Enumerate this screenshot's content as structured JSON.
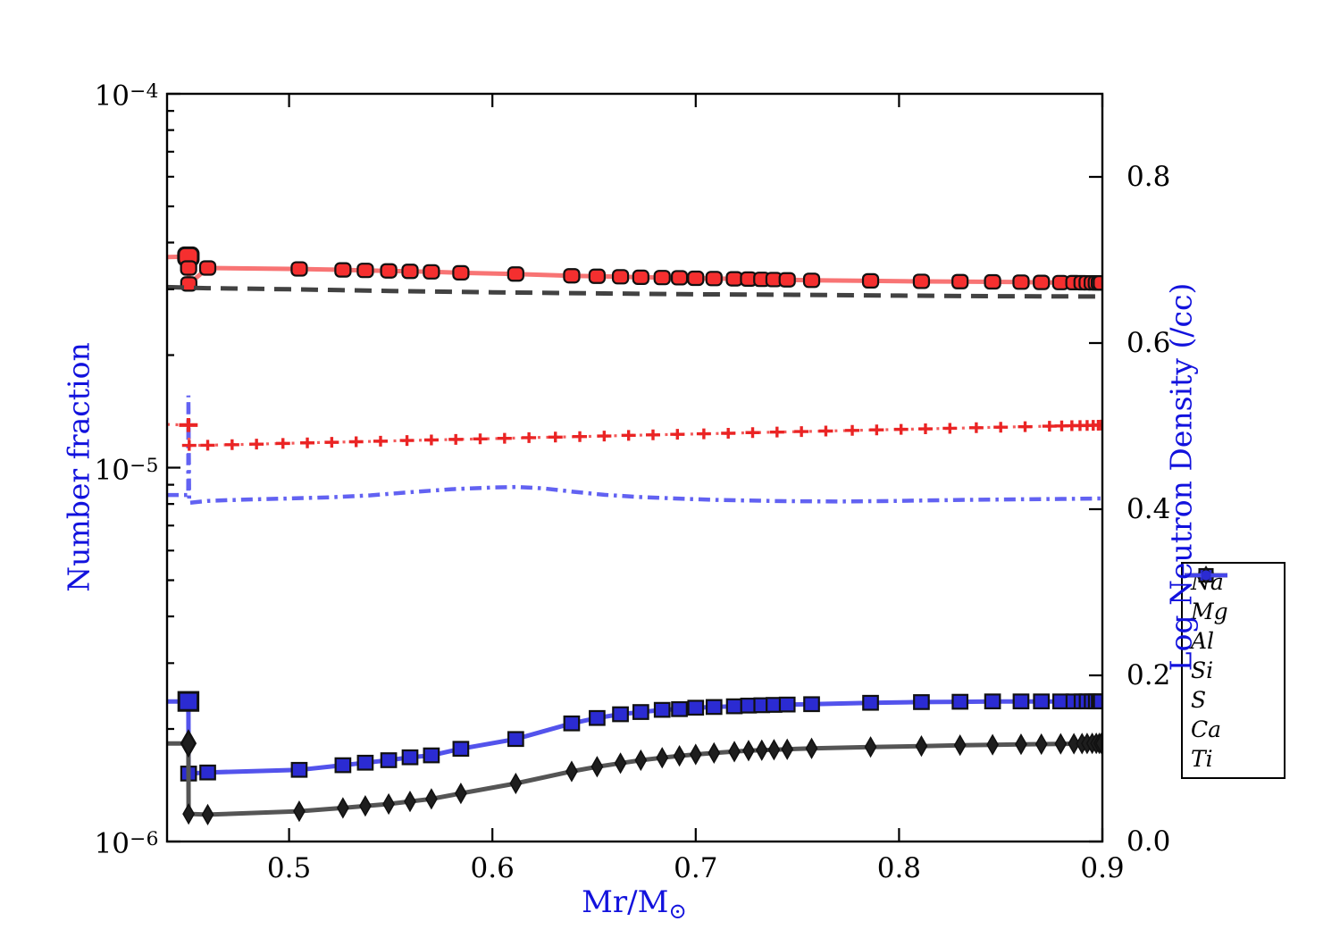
{
  "figure": {
    "background": "#ffffff",
    "label_color": "#1212dd",
    "x_axis": {
      "label_prefix": "Mr/M",
      "label_subscript": "⊙",
      "range": [
        0.44,
        0.9
      ],
      "ticks": [
        {
          "v": 0.5,
          "text": "0.5"
        },
        {
          "v": 0.6,
          "text": "0.6"
        },
        {
          "v": 0.7,
          "text": "0.7"
        },
        {
          "v": 0.8,
          "text": "0.8"
        },
        {
          "v": 0.9,
          "text": "0.9"
        }
      ]
    },
    "y_left": {
      "label": "Number fraction",
      "scale": "log",
      "range": [
        1e-06,
        0.0001
      ],
      "ticks": [
        {
          "v": 0.0001,
          "base": "10",
          "exp": "−4"
        },
        {
          "v": 1e-05,
          "base": "10",
          "exp": "−5"
        },
        {
          "v": 1e-06,
          "base": "10",
          "exp": "−6"
        }
      ]
    },
    "y_right": {
      "label": "Log Neutron Density (/cc)",
      "scale": "linear",
      "range": [
        0.0,
        0.9
      ],
      "ticks": [
        {
          "v": 0.8,
          "text": "0.8"
        },
        {
          "v": 0.6,
          "text": "0.6"
        },
        {
          "v": 0.4,
          "text": "0.4"
        },
        {
          "v": 0.2,
          "text": "0.2"
        },
        {
          "v": 0.0,
          "text": "0.0"
        }
      ]
    }
  },
  "legend": {
    "border_color": "#000000",
    "background": "#ffffff"
  },
  "chart_data": {
    "type": "line",
    "title": "",
    "xlabel": "Mr/M⊙",
    "ylabel_left": "Number fraction",
    "ylabel_right": "Log Neutron Density (/cc)",
    "x_range": [
      0.44,
      0.9
    ],
    "y_left_range": [
      1e-06,
      0.0001
    ],
    "y_right_range": [
      0.0,
      0.9
    ],
    "grid": false,
    "legend_position": "right-outside",
    "series": [
      {
        "label": "Na",
        "axis": "left",
        "line_color": "#6262f2",
        "line_width": 4.5,
        "dash": [
          13,
          6,
          3.5,
          6
        ],
        "marker": null,
        "points": [
          [
            0.44,
            8.45e-06
          ],
          [
            0.4504,
            8.45e-06
          ],
          [
            0.4505,
            1.56e-05
          ],
          [
            0.4509,
            8.05e-06
          ],
          [
            0.46,
            8.15e-06
          ],
          [
            0.48,
            8.22e-06
          ],
          [
            0.5,
            8.27e-06
          ],
          [
            0.52,
            8.33e-06
          ],
          [
            0.54,
            8.43e-06
          ],
          [
            0.56,
            8.6e-06
          ],
          [
            0.58,
            8.76e-06
          ],
          [
            0.6,
            8.85e-06
          ],
          [
            0.612,
            8.88e-06
          ],
          [
            0.625,
            8.8e-06
          ],
          [
            0.64,
            8.62e-06
          ],
          [
            0.655,
            8.46e-06
          ],
          [
            0.672,
            8.35e-06
          ],
          [
            0.69,
            8.27e-06
          ],
          [
            0.71,
            8.2e-06
          ],
          [
            0.74,
            8.14e-06
          ],
          [
            0.77,
            8.12e-06
          ],
          [
            0.8,
            8.15e-06
          ],
          [
            0.83,
            8.2e-06
          ],
          [
            0.86,
            8.23e-06
          ],
          [
            0.88,
            8.25e-06
          ],
          [
            0.9,
            8.27e-06
          ]
        ]
      },
      {
        "label": "Mg",
        "axis": "left",
        "line_color": "#f87474",
        "line_width": 5,
        "dash": null,
        "big_first": true,
        "marker": {
          "shape": "roundsquare",
          "w": 17,
          "h": 15,
          "fill": "#f52f2f",
          "edge": "#111111",
          "edge_width": 2.2
        },
        "pre": [
          [
            0.44,
            3.66e-05
          ]
        ],
        "points": [
          [
            0.4505,
            3.67e-05
          ],
          [
            0.4506,
            3.42e-05
          ],
          [
            0.4507,
            3.1e-05
          ],
          [
            0.46,
            3.42e-05
          ],
          [
            0.505,
            3.4e-05
          ],
          [
            0.5265,
            3.38e-05
          ],
          [
            0.5375,
            3.37e-05
          ],
          [
            0.549,
            3.36e-05
          ],
          [
            0.5595,
            3.35e-05
          ],
          [
            0.57,
            3.34e-05
          ],
          [
            0.5845,
            3.32e-05
          ],
          [
            0.6115,
            3.295e-05
          ],
          [
            0.639,
            3.26e-05
          ],
          [
            0.6515,
            3.25e-05
          ],
          [
            0.663,
            3.24e-05
          ],
          [
            0.673,
            3.23e-05
          ],
          [
            0.6835,
            3.225e-05
          ],
          [
            0.692,
            3.22e-05
          ],
          [
            0.7,
            3.21e-05
          ],
          [
            0.709,
            3.205e-05
          ],
          [
            0.719,
            3.2e-05
          ],
          [
            0.726,
            3.195e-05
          ],
          [
            0.7325,
            3.19e-05
          ],
          [
            0.7385,
            3.185e-05
          ],
          [
            0.745,
            3.18e-05
          ],
          [
            0.757,
            3.17e-05
          ],
          [
            0.786,
            3.16e-05
          ],
          [
            0.811,
            3.15e-05
          ],
          [
            0.83,
            3.145e-05
          ],
          [
            0.846,
            3.14e-05
          ],
          [
            0.86,
            3.135e-05
          ],
          [
            0.87,
            3.13e-05
          ],
          [
            0.8795,
            3.127e-05
          ],
          [
            0.886,
            3.125e-05
          ],
          [
            0.89,
            3.123e-05
          ],
          [
            0.8925,
            3.122e-05
          ],
          [
            0.895,
            3.121e-05
          ],
          [
            0.897,
            3.12e-05
          ],
          [
            0.8985,
            3.12e-05
          ],
          [
            0.8995,
            3.12e-05
          ]
        ]
      },
      {
        "label": "Al",
        "axis": "left",
        "line_color": "#5353ec",
        "line_width": 5,
        "dash": null,
        "big_first": true,
        "marker": {
          "shape": "square",
          "w": 16.5,
          "h": 15.5,
          "fill": "#2b2bd2",
          "edge": "#111111",
          "edge_width": 2.2
        },
        "pre": [
          [
            0.44,
            2.37e-06
          ]
        ],
        "points": [
          [
            0.4505,
            2.37e-06
          ],
          [
            0.4506,
            1.52e-06
          ],
          [
            0.46,
            1.53e-06
          ],
          [
            0.505,
            1.555e-06
          ],
          [
            0.5265,
            1.6e-06
          ],
          [
            0.5375,
            1.625e-06
          ],
          [
            0.549,
            1.65e-06
          ],
          [
            0.5595,
            1.68e-06
          ],
          [
            0.57,
            1.7e-06
          ],
          [
            0.5845,
            1.77e-06
          ],
          [
            0.6115,
            1.88e-06
          ],
          [
            0.639,
            2.07e-06
          ],
          [
            0.6515,
            2.14e-06
          ],
          [
            0.663,
            2.19e-06
          ],
          [
            0.673,
            2.22e-06
          ],
          [
            0.6835,
            2.25e-06
          ],
          [
            0.692,
            2.26e-06
          ],
          [
            0.7,
            2.28e-06
          ],
          [
            0.709,
            2.29e-06
          ],
          [
            0.719,
            2.3e-06
          ],
          [
            0.726,
            2.31e-06
          ],
          [
            0.7325,
            2.315e-06
          ],
          [
            0.7385,
            2.32e-06
          ],
          [
            0.745,
            2.325e-06
          ],
          [
            0.757,
            2.33e-06
          ],
          [
            0.786,
            2.35e-06
          ],
          [
            0.811,
            2.36e-06
          ],
          [
            0.83,
            2.365e-06
          ],
          [
            0.846,
            2.37e-06
          ],
          [
            0.86,
            2.37e-06
          ],
          [
            0.87,
            2.37e-06
          ],
          [
            0.8795,
            2.37e-06
          ],
          [
            0.886,
            2.37e-06
          ],
          [
            0.89,
            2.37e-06
          ],
          [
            0.8925,
            2.37e-06
          ],
          [
            0.895,
            2.37e-06
          ],
          [
            0.897,
            2.37e-06
          ],
          [
            0.8985,
            2.37e-06
          ],
          [
            0.8995,
            2.37e-06
          ]
        ]
      },
      {
        "label": "Si",
        "axis": "left",
        "line_color": "#424242",
        "line_width": 5,
        "dash": [
          19,
          11
        ],
        "marker": null,
        "points": [
          [
            0.44,
            3.04e-05
          ],
          [
            0.46,
            3.02e-05
          ],
          [
            0.5,
            3e-05
          ],
          [
            0.55,
            2.97e-05
          ],
          [
            0.6,
            2.945e-05
          ],
          [
            0.65,
            2.925e-05
          ],
          [
            0.7,
            2.91e-05
          ],
          [
            0.75,
            2.9e-05
          ],
          [
            0.8,
            2.885e-05
          ],
          [
            0.85,
            2.875e-05
          ],
          [
            0.9,
            2.87e-05
          ]
        ]
      },
      {
        "label": "S",
        "axis": "left",
        "line_color": "#f35b5b",
        "line_width": 3.2,
        "dash": [
          3,
          6.5
        ],
        "big_first": true,
        "marker": {
          "shape": "plus",
          "w": 16,
          "h": 12,
          "fill": "#ea2424",
          "edge": "#ea2424",
          "edge_width": 3.4
        },
        "pre": [
          [
            0.44,
            1.305e-05
          ]
        ],
        "points": [
          [
            0.4505,
            1.3e-05
          ],
          [
            0.4509,
            1.147e-05
          ],
          [
            0.46,
            1.148e-05
          ],
          [
            0.472,
            1.152e-05
          ],
          [
            0.484,
            1.156e-05
          ],
          [
            0.497,
            1.161e-05
          ],
          [
            0.509,
            1.165e-05
          ],
          [
            0.521,
            1.169e-05
          ],
          [
            0.533,
            1.173e-05
          ],
          [
            0.545,
            1.177e-05
          ],
          [
            0.558,
            1.182e-05
          ],
          [
            0.57,
            1.186e-05
          ],
          [
            0.582,
            1.19e-05
          ],
          [
            0.594,
            1.194e-05
          ],
          [
            0.606,
            1.198e-05
          ],
          [
            0.618,
            1.203e-05
          ],
          [
            0.631,
            1.207e-05
          ],
          [
            0.643,
            1.211e-05
          ],
          [
            0.655,
            1.215e-05
          ],
          [
            0.667,
            1.22e-05
          ],
          [
            0.679,
            1.224e-05
          ],
          [
            0.691,
            1.228e-05
          ],
          [
            0.704,
            1.232e-05
          ],
          [
            0.716,
            1.236e-05
          ],
          [
            0.728,
            1.241e-05
          ],
          [
            0.74,
            1.245e-05
          ],
          [
            0.752,
            1.249e-05
          ],
          [
            0.764,
            1.253e-05
          ],
          [
            0.777,
            1.258e-05
          ],
          [
            0.789,
            1.262e-05
          ],
          [
            0.801,
            1.266e-05
          ],
          [
            0.813,
            1.27e-05
          ],
          [
            0.825,
            1.274e-05
          ],
          [
            0.838,
            1.279e-05
          ],
          [
            0.85,
            1.283e-05
          ],
          [
            0.862,
            1.287e-05
          ],
          [
            0.874,
            1.291e-05
          ],
          [
            0.88,
            1.293e-05
          ],
          [
            0.885,
            1.295e-05
          ],
          [
            0.889,
            1.296e-05
          ],
          [
            0.8925,
            1.297e-05
          ],
          [
            0.8955,
            1.298e-05
          ],
          [
            0.898,
            1.299e-05
          ],
          [
            0.8995,
            1.3e-05
          ]
        ]
      },
      {
        "label": "Ca",
        "axis": "left",
        "line_color": "#555555",
        "line_width": 5,
        "dash": null,
        "big_first": true,
        "marker": {
          "shape": "diamond",
          "w": 12,
          "h": 21,
          "fill": "#1e1e1e",
          "edge": "#111111",
          "edge_width": 1.6
        },
        "pre": [
          [
            0.44,
            1.83e-06
          ]
        ],
        "points": [
          [
            0.4505,
            1.83e-06
          ],
          [
            0.4506,
            1.185e-06
          ],
          [
            0.46,
            1.18e-06
          ],
          [
            0.505,
            1.205e-06
          ],
          [
            0.5265,
            1.23e-06
          ],
          [
            0.5375,
            1.245e-06
          ],
          [
            0.549,
            1.26e-06
          ],
          [
            0.5595,
            1.28e-06
          ],
          [
            0.57,
            1.3e-06
          ],
          [
            0.5845,
            1.345e-06
          ],
          [
            0.6115,
            1.43e-06
          ],
          [
            0.639,
            1.54e-06
          ],
          [
            0.6515,
            1.585e-06
          ],
          [
            0.663,
            1.62e-06
          ],
          [
            0.673,
            1.65e-06
          ],
          [
            0.6835,
            1.675e-06
          ],
          [
            0.692,
            1.695e-06
          ],
          [
            0.7,
            1.71e-06
          ],
          [
            0.709,
            1.725e-06
          ],
          [
            0.719,
            1.74e-06
          ],
          [
            0.726,
            1.75e-06
          ],
          [
            0.7325,
            1.755e-06
          ],
          [
            0.7385,
            1.76e-06
          ],
          [
            0.745,
            1.765e-06
          ],
          [
            0.757,
            1.775e-06
          ],
          [
            0.786,
            1.79e-06
          ],
          [
            0.811,
            1.8e-06
          ],
          [
            0.83,
            1.81e-06
          ],
          [
            0.846,
            1.815e-06
          ],
          [
            0.86,
            1.82e-06
          ],
          [
            0.87,
            1.822e-06
          ],
          [
            0.8795,
            1.825e-06
          ],
          [
            0.886,
            1.827e-06
          ],
          [
            0.89,
            1.828e-06
          ],
          [
            0.8925,
            1.829e-06
          ],
          [
            0.895,
            1.83e-06
          ],
          [
            0.897,
            1.83e-06
          ],
          [
            0.8985,
            1.83e-06
          ],
          [
            0.8995,
            1.83e-06
          ]
        ]
      },
      {
        "label": "Ti",
        "axis": "left",
        "line_color": "#4646ea",
        "line_width": 4.5,
        "dash": null,
        "marker": {
          "shape": "circle",
          "w": 11,
          "h": 11,
          "fill": "#2b2bd2",
          "edge": "#2b2bd2",
          "edge_width": 1
        },
        "points": []
      }
    ]
  }
}
